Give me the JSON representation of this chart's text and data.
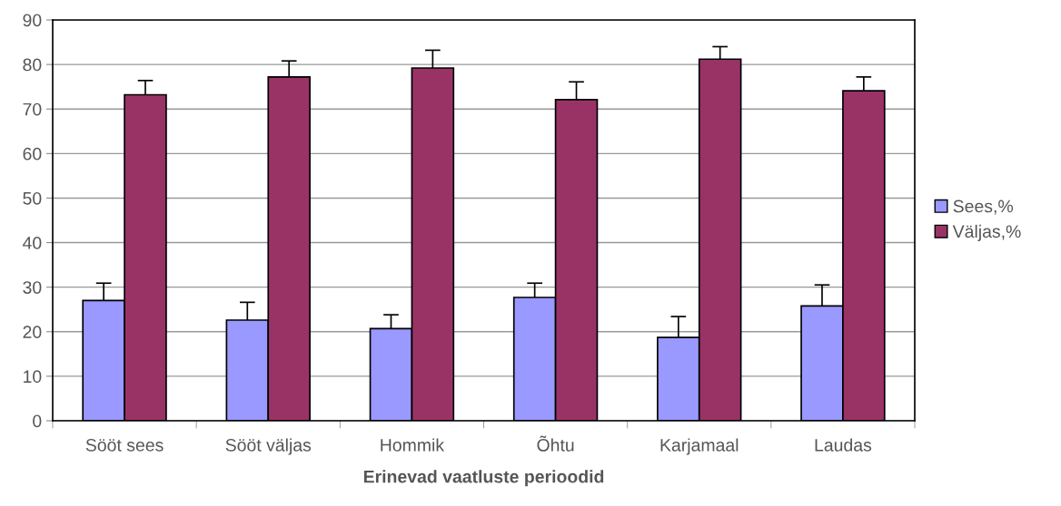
{
  "chart_data": {
    "type": "bar",
    "xlabel": "Erinevad vaatluste perioodid",
    "categories": [
      "Sööt sees",
      "Sööt väljas",
      "Hommik",
      "Õhtu",
      "Karjamaal",
      "Laudas"
    ],
    "series": [
      {
        "name": "Sees,%",
        "color": "#9999ff",
        "values": [
          27.0,
          22.6,
          20.7,
          27.7,
          18.7,
          25.8
        ],
        "errors": [
          [
            27.0,
            30.9
          ],
          [
            22.6,
            26.6
          ],
          [
            20.7,
            23.8
          ],
          [
            27.7,
            30.9
          ],
          [
            18.7,
            23.4
          ],
          [
            25.8,
            30.5
          ]
        ]
      },
      {
        "name": "Väljas,%",
        "color": "#993366",
        "values": [
          73.2,
          77.2,
          79.2,
          72.1,
          81.2,
          74.1
        ],
        "errors": [
          [
            73.2,
            76.4
          ],
          [
            77.2,
            80.8
          ],
          [
            79.2,
            83.2
          ],
          [
            72.1,
            76.1
          ],
          [
            81.2,
            84.0
          ],
          [
            74.1,
            77.2
          ]
        ]
      }
    ],
    "ylim": [
      0,
      90
    ],
    "yticks": [
      0,
      10,
      20,
      30,
      40,
      50,
      60,
      70,
      80,
      90
    ],
    "grid": "y",
    "legend": "right"
  }
}
